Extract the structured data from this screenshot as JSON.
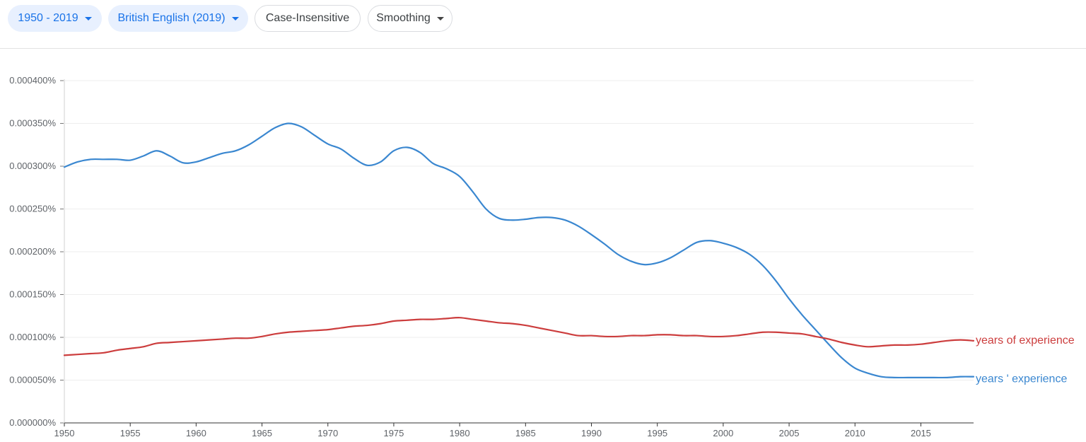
{
  "toolbar": {
    "year_range": "1950 - 2019",
    "corpus": "British English (2019)",
    "case": "Case-Insensitive",
    "smoothing": "Smoothing"
  },
  "colors": {
    "accent": "#1a73e8",
    "chip_bg": "#e8f0fe",
    "series_blue": "#3a87d0",
    "series_red": "#cc3d3d"
  },
  "chart_data": {
    "type": "line",
    "title": "",
    "xlabel": "",
    "ylabel": "",
    "xlim": [
      1950,
      2019
    ],
    "ylim": [
      0,
      0.0004
    ],
    "grid": true,
    "x_ticks": [
      1950,
      1955,
      1960,
      1965,
      1970,
      1975,
      1980,
      1985,
      1990,
      1995,
      2000,
      2005,
      2010,
      2015
    ],
    "x_tick_labels": [
      "1950",
      "1955",
      "1960",
      "1965",
      "1970",
      "1975",
      "1980",
      "1985",
      "1990",
      "1995",
      "2000",
      "2005",
      "2010",
      "2015"
    ],
    "y_ticks": [
      0,
      5e-05,
      0.0001,
      0.00015,
      0.0002,
      0.00025,
      0.0003,
      0.00035,
      0.0004
    ],
    "y_tick_labels": [
      "0.000000%",
      "0.000050%",
      "0.000100%",
      "0.000150%",
      "0.000200%",
      "0.000250%",
      "0.000300%",
      "0.000350%",
      "0.000400%"
    ],
    "x": [
      1950,
      1951,
      1952,
      1953,
      1954,
      1955,
      1956,
      1957,
      1958,
      1959,
      1960,
      1961,
      1962,
      1963,
      1964,
      1965,
      1966,
      1967,
      1968,
      1969,
      1970,
      1971,
      1972,
      1973,
      1974,
      1975,
      1976,
      1977,
      1978,
      1979,
      1980,
      1981,
      1982,
      1983,
      1984,
      1985,
      1986,
      1987,
      1988,
      1989,
      1990,
      1991,
      1992,
      1993,
      1994,
      1995,
      1996,
      1997,
      1998,
      1999,
      2000,
      2001,
      2002,
      2003,
      2004,
      2005,
      2006,
      2007,
      2008,
      2009,
      2010,
      2011,
      2012,
      2013,
      2014,
      2015,
      2016,
      2017,
      2018,
      2019
    ],
    "series": [
      {
        "name": "years ' experience",
        "color": "#3a87d0",
        "values": [
          0.000299,
          0.000305,
          0.000308,
          0.000308,
          0.000308,
          0.000307,
          0.000312,
          0.000318,
          0.000312,
          0.000304,
          0.000305,
          0.00031,
          0.000315,
          0.000318,
          0.000325,
          0.000335,
          0.000345,
          0.00035,
          0.000346,
          0.000336,
          0.000326,
          0.00032,
          0.000309,
          0.000301,
          0.000305,
          0.000318,
          0.000322,
          0.000316,
          0.000303,
          0.000297,
          0.000288,
          0.00027,
          0.00025,
          0.000239,
          0.000237,
          0.000238,
          0.00024,
          0.00024,
          0.000237,
          0.00023,
          0.00022,
          0.000209,
          0.000197,
          0.000189,
          0.000185,
          0.000187,
          0.000193,
          0.000202,
          0.000211,
          0.000213,
          0.00021,
          0.000205,
          0.000197,
          0.000184,
          0.000166,
          0.000145,
          0.000126,
          0.000109,
          9.2e-05,
          7.6e-05,
          6.4e-05,
          5.8e-05,
          5.4e-05,
          5.3e-05,
          5.3e-05,
          5.3e-05,
          5.3e-05,
          5.3e-05,
          5.4e-05,
          5.4e-05
        ]
      },
      {
        "name": "years of experience",
        "color": "#cc3d3d",
        "values": [
          7.9e-05,
          8e-05,
          8.1e-05,
          8.2e-05,
          8.5e-05,
          8.7e-05,
          8.9e-05,
          9.3e-05,
          9.4e-05,
          9.5e-05,
          9.6e-05,
          9.7e-05,
          9.8e-05,
          9.9e-05,
          9.9e-05,
          0.000101,
          0.000104,
          0.000106,
          0.000107,
          0.000108,
          0.000109,
          0.000111,
          0.000113,
          0.000114,
          0.000116,
          0.000119,
          0.00012,
          0.000121,
          0.000121,
          0.000122,
          0.000123,
          0.000121,
          0.000119,
          0.000117,
          0.000116,
          0.000114,
          0.000111,
          0.000108,
          0.000105,
          0.000102,
          0.000102,
          0.000101,
          0.000101,
          0.000102,
          0.000102,
          0.000103,
          0.000103,
          0.000102,
          0.000102,
          0.000101,
          0.000101,
          0.000102,
          0.000104,
          0.000106,
          0.000106,
          0.000105,
          0.000104,
          0.000101,
          9.8e-05,
          9.4e-05,
          9.1e-05,
          8.9e-05,
          9e-05,
          9.1e-05,
          9.1e-05,
          9.2e-05,
          9.4e-05,
          9.6e-05,
          9.7e-05,
          9.6e-05
        ]
      }
    ]
  }
}
